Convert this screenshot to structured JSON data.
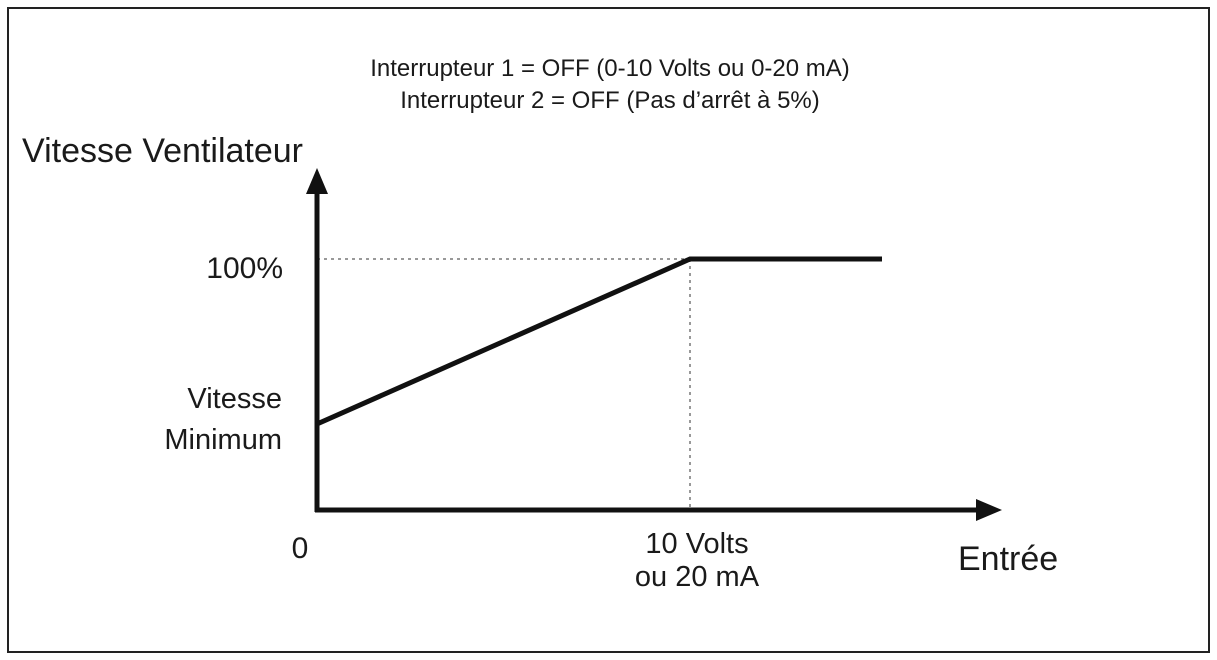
{
  "title_lines": [
    "Interrupteur 1 = OFF (0-10 Volts ou 0-20 mA)",
    "Interrupteur 2 = OFF (Pas d’arrêt à 5%)"
  ],
  "y_axis_label": "Vitesse Ventilateur",
  "x_axis_label": "Entrée",
  "y_labels": {
    "max": "100%",
    "min_lines": [
      "Vitesse",
      "Minimum"
    ]
  },
  "x_labels": {
    "origin": "0",
    "max_lines": [
      "10 Volts",
      "ou 20 mA"
    ]
  }
}
